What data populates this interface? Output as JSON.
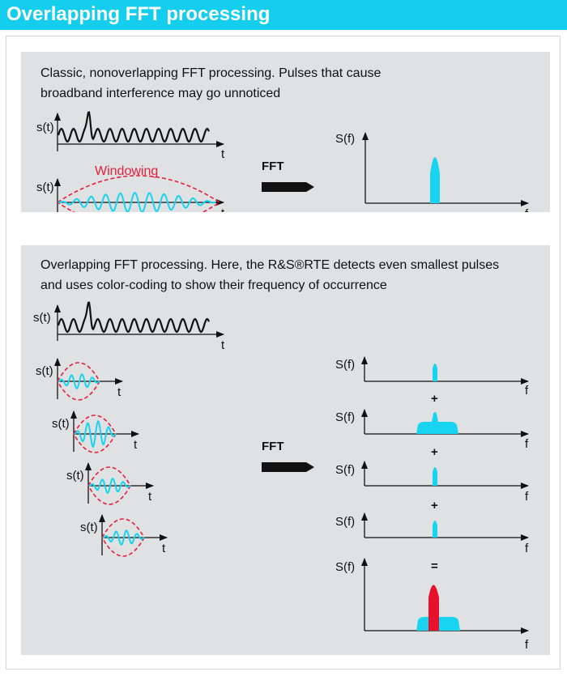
{
  "title": "Overlapping FFT processing",
  "panel1": {
    "line1": "Classic, nonoverlapping FFT processing. Pulses that cause",
    "line2": "broadband interference may go unnoticed",
    "signal_label": "s(t)",
    "time_label": "t",
    "windowing_label": "Windowing",
    "fft_label": "FFT",
    "spectrum_label": "S(f)",
    "freq_label": "f"
  },
  "panel2": {
    "line1": "Overlapping FFT processing. Here, the R&S®RTE detects even smallest pulses",
    "line2": "and uses color-coding to show their frequency of occurrence",
    "signal_label": "s(t)",
    "time_label": "t",
    "fft_label": "FFT",
    "spectrum_label": "S(f)",
    "freq_label": "f",
    "plus": "+",
    "equals": "="
  },
  "colors": {
    "header": "#15ceee",
    "panel": "#e0e1e2",
    "cyan": "#18d4f0",
    "red_dashed": "#e2203f",
    "red_fill": "#e8112d"
  }
}
